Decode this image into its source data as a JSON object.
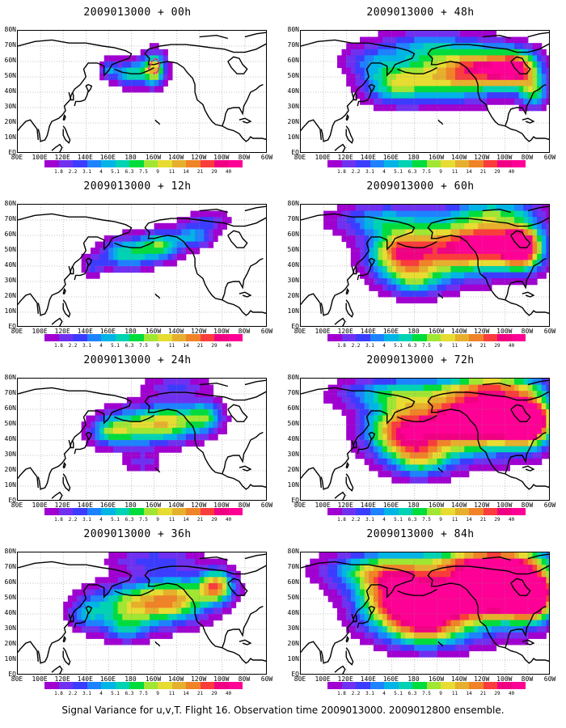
{
  "panels": [
    {
      "title": "2009013000 + 00h",
      "intensity": 0.25
    },
    {
      "title": "2009013000 + 12h",
      "intensity": 0.35
    },
    {
      "title": "2009013000 + 24h",
      "intensity": 0.5
    },
    {
      "title": "2009013000 + 36h",
      "intensity": 0.6
    },
    {
      "title": "2009013000 + 48h",
      "intensity": 0.55
    },
    {
      "title": "2009013000 + 60h",
      "intensity": 0.65
    },
    {
      "title": "2009013000 + 72h",
      "intensity": 0.75
    },
    {
      "title": "2009013000 + 84h",
      "intensity": 0.8
    }
  ],
  "y_axis_labels": [
    "80N",
    "70N",
    "60N",
    "50N",
    "40N",
    "30N",
    "20N",
    "10N",
    "EQ"
  ],
  "x_axis_labels": [
    "80E",
    "100E",
    "120E",
    "140E",
    "160E",
    "180",
    "160W",
    "140W",
    "120W",
    "100W",
    "80W",
    "60W"
  ],
  "colorbar": {
    "labels": [
      "1.8",
      "2.2",
      "3.1",
      "4",
      "5.1",
      "6.3",
      "7.5",
      "9",
      "11",
      "14",
      "21",
      "29",
      "40"
    ],
    "colors": [
      "#a000d0",
      "#7030f0",
      "#3c3cff",
      "#1e82ff",
      "#00b4e6",
      "#00d2b4",
      "#00dc3c",
      "#a0e632",
      "#e6dc32",
      "#e6af2d",
      "#f08228",
      "#fa3c3c",
      "#f00082",
      "#ff0096"
    ]
  },
  "footer": "Signal Variance for u,v,T. Flight 16. Observation time 2009013000. 2009012800 ensemble."
}
